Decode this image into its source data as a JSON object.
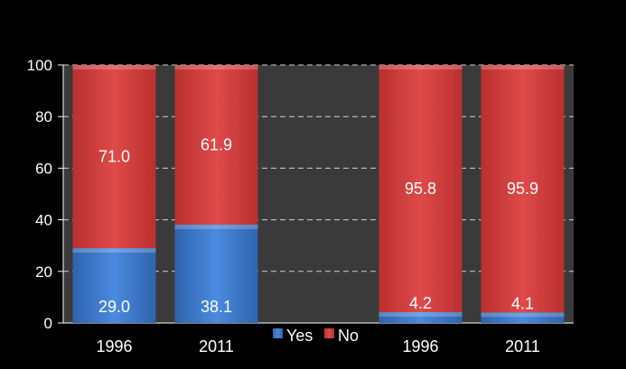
{
  "chart_data": {
    "type": "bar",
    "stacked": true,
    "categories": [
      "1996",
      "2011",
      "",
      "1996",
      "2011"
    ],
    "series": [
      {
        "name": "Yes",
        "values": [
          29.0,
          38.1,
          null,
          4.2,
          4.1
        ]
      },
      {
        "name": "No",
        "values": [
          71.0,
          61.9,
          null,
          95.8,
          95.9
        ]
      }
    ],
    "data_labels": {
      "Yes": [
        "29.0",
        "38.1",
        "",
        "4.2",
        "4.1"
      ],
      "No": [
        "71.0",
        "61.9",
        "",
        "95.8",
        "95.9"
      ]
    },
    "yticks": [
      "0",
      "20",
      "40",
      "60",
      "80",
      "100"
    ],
    "ylim": [
      0,
      100
    ],
    "grid": true,
    "legend": {
      "position": "bottom-center",
      "entries": [
        "Yes",
        "No"
      ]
    },
    "title": "",
    "xlabel": "",
    "ylabel": ""
  },
  "colors": {
    "page_background": "#000000",
    "plot_background": "#3a3a3a",
    "yes": "#3b78c9",
    "no": "#d24142",
    "gridline": "#c7d2e3",
    "text": "#ffffff"
  }
}
